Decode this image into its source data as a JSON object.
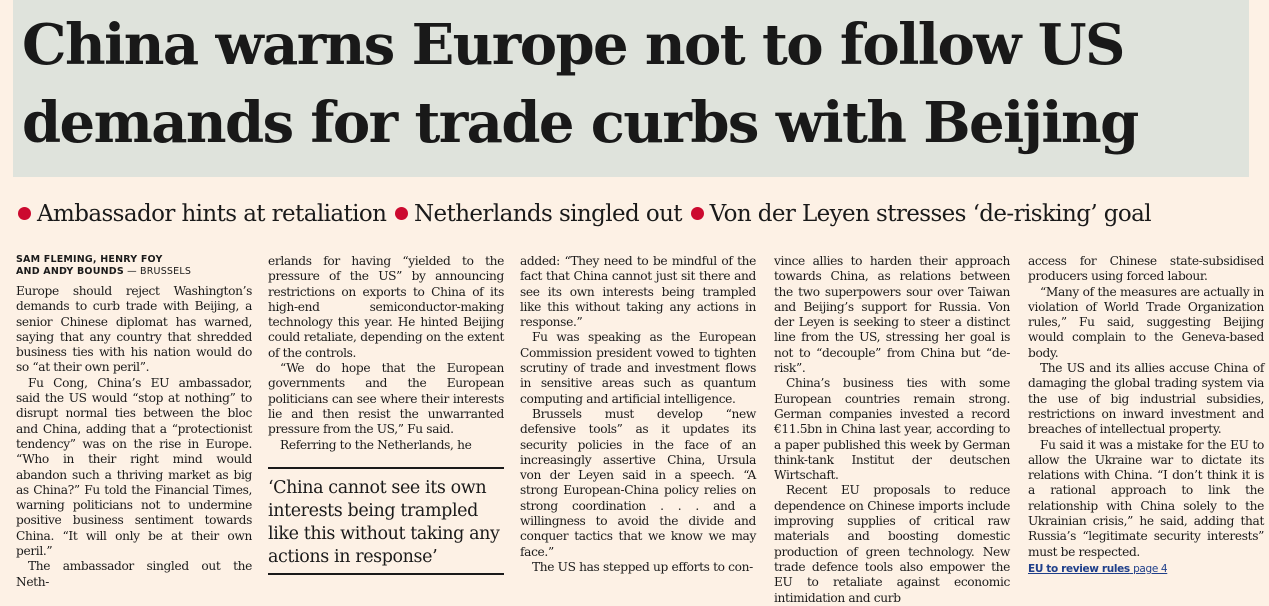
{
  "headline": {
    "line1": "China warns Europe not to follow US",
    "line2": "demands for trade curbs with Beijing"
  },
  "subheads": [
    "Ambassador hints at retaliation",
    "Netherlands singled out",
    "Von der Leyen stresses ‘de-risking’ goal"
  ],
  "colors": {
    "bullet": "#cc0a2f",
    "background": "#fdf1e5",
    "headline_box": "#dfe3dc",
    "link": "#1f3f8a"
  },
  "byline": {
    "names_line1": "SAM FLEMING, HENRY FOY",
    "names_line2": "AND ANDY BOUNDS",
    "separator": " — ",
    "location": "BRUSSELS"
  },
  "columns": {
    "col1": [
      "Europe should reject Washington’s demands to curb trade with Beijing, a senior Chinese diplomat has warned, saying that any country that shredded business ties with his nation would do so “at their own peril”.",
      "Fu Cong, China’s EU ambassador, said the US would “stop at nothing” to disrupt normal ties between the bloc and China, adding that a “protectionist tendency” was on the rise in Europe. “Who in their right mind would abandon such a thriving market as big as China?” Fu told the Financial Times, warning politicians not to undermine positive business sentiment towards China. “It will only be at their own peril.”",
      "The ambassador singled out the Neth-"
    ],
    "col2": [
      "erlands for having “yielded to the pressure of the US” by announcing restrictions on exports to China of its high-end semiconductor-making technology this year. He hinted Beijing could retaliate, depending on the extent of the controls.",
      "“We do hope that the European governments and the European politicians can see where their interests lie and then resist the unwarranted pressure from the US,” Fu said.",
      "Referring to the Netherlands, he"
    ],
    "pull_quote": "‘China cannot see its own interests being trampled like this without taking any actions in response’",
    "col3": [
      "added: “They need to be mindful of the fact that China cannot just sit there and see its own interests being trampled like this without taking any actions in response.”",
      "Fu was speaking as the European Commission president vowed to tighten scrutiny of trade and investment flows in sensitive areas such as quantum computing and artificial intelligence.",
      "Brussels must develop “new defensive tools” as it updates its security policies in the face of an increasingly assertive China, Ursula von der Leyen said in a speech. “A strong European-China policy relies on strong coordination . . . and a willingness to avoid the divide and conquer tactics that we know we may face.”",
      "The US has stepped up efforts to con-"
    ],
    "col4": [
      "vince allies to harden their approach towards China, as relations between the two superpowers sour over Taiwan and Beijing’s support for Russia. Von der Leyen is seeking to steer a distinct line from the US, stressing her goal is not to “decouple” from China but “de-risk”.",
      "China’s business ties with some European countries remain strong. German companies invested a record €11.5bn in China last year, according to a paper published this week by German think-tank Institut der deutschen Wirtschaft.",
      "Recent EU proposals to reduce dependence on Chinese imports include improving supplies of critical raw materials and boosting domestic production of green technology. New trade defence tools also empower the EU to retaliate against economic intimidation and curb"
    ],
    "col5": [
      "access for Chinese state-subsidised producers using forced labour.",
      "“Many of the measures are actually in violation of World Trade Organization rules,” Fu said, suggesting Beijing would complain to the Geneva-based body.",
      "The US and its allies accuse China of damaging the global trading system via the use of big industrial subsidies, restrictions on inward investment and breaches of intellectual property.",
      "Fu said it was a mistake for the EU to allow the Ukraine war to dictate its relations with China. “I don’t think it is a rational approach to link the relationship with China solely to the Ukrainian crisis,” he said, adding that Russia’s “legitimate security interests” must be respected."
    ],
    "ref": {
      "label": "EU to review rules",
      "page": "page 4"
    }
  }
}
